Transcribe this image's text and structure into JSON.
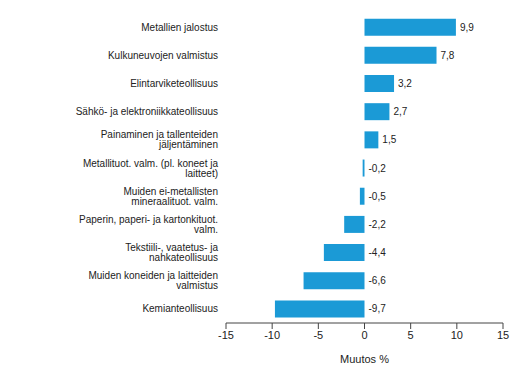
{
  "chart_data": {
    "type": "bar",
    "orientation": "horizontal",
    "categories": [
      "Metallien jalostus",
      "Kulkuneuvojen valmistus",
      "Elintarviketeollisuus",
      "Sähkö- ja elektroniikkateollisuus",
      "Painaminen ja tallenteiden jäljentäminen",
      "Metallituot. valm. (pl. koneet ja laitteet)",
      "Muiden ei-metallisten mineraalituot. valm.",
      "Paperin, paperi- ja kartonkituot. valm.",
      "Tekstiili-, vaatetus- ja nahkateollisuus",
      "Muiden koneiden ja laitteiden valmistus",
      "Kemianteollisuus"
    ],
    "values": [
      9.9,
      7.8,
      3.2,
      2.7,
      1.5,
      -0.2,
      -0.5,
      -2.2,
      -4.4,
      -6.6,
      -9.7
    ],
    "value_labels": [
      "9,9",
      "7,8",
      "3,2",
      "2,7",
      "1,5",
      "-0,2",
      "-0,5",
      "-2,2",
      "-4,4",
      "-6,6",
      "-9,7"
    ],
    "data_labels": true,
    "color": "#1b9ad6",
    "x_label": "Muutos %",
    "xlim": [
      -15,
      15
    ],
    "xticks": [
      -15,
      -10,
      -5,
      0,
      5,
      10,
      15
    ],
    "grid": false
  }
}
